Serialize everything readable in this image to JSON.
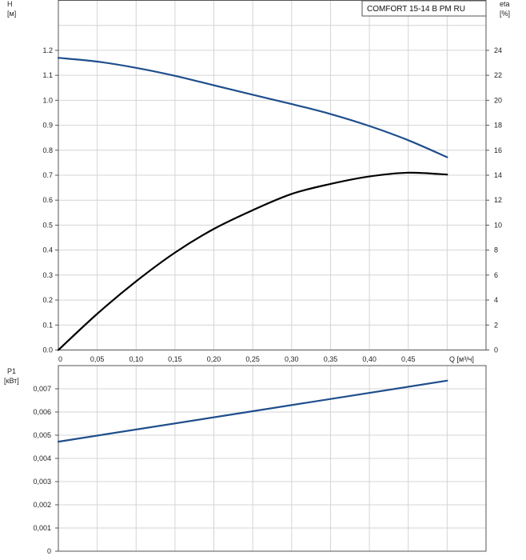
{
  "chart_data": [
    {
      "type": "line",
      "title": "",
      "legend_box": "COMFORT 15-14 B PM RU",
      "legend_position": "top-right",
      "grid": true,
      "x_label": "Q [м³/ч]",
      "x_range": [
        0,
        0.55
      ],
      "x_ticks": [
        "0",
        "0,05",
        "0,10",
        "0,15",
        "0,20",
        "0,25",
        "0,30",
        "0,35",
        "0,40",
        "0,45"
      ],
      "y_label": "H",
      "y_unit": "[м]",
      "y_range": [
        0,
        1.4
      ],
      "y_ticks": [
        "0.0",
        "0.1",
        "0.2",
        "0.3",
        "0.4",
        "0.5",
        "0.6",
        "0.7",
        "0.8",
        "0.9",
        "1.0",
        "1.1",
        "1.2"
      ],
      "y2_label": "eta",
      "y2_unit": "[%]",
      "y2_range": [
        0,
        28
      ],
      "y2_ticks": [
        "0",
        "2",
        "4",
        "6",
        "8",
        "10",
        "12",
        "14",
        "16",
        "18",
        "20",
        "22",
        "24"
      ],
      "series": [
        {
          "axis": "left",
          "color": "#1f4e8c",
          "x": [
            0,
            0.05,
            0.1,
            0.15,
            0.2,
            0.25,
            0.3,
            0.35,
            0.4,
            0.45,
            0.5
          ],
          "y": [
            1.17,
            1.155,
            1.13,
            1.098,
            1.06,
            1.022,
            0.985,
            0.945,
            0.897,
            0.84,
            0.772
          ]
        },
        {
          "axis": "right",
          "color": "#000000",
          "x": [
            0,
            0.05,
            0.1,
            0.15,
            0.2,
            0.25,
            0.3,
            0.35,
            0.4,
            0.45,
            0.5
          ],
          "y": [
            0,
            2.9,
            5.5,
            7.8,
            9.7,
            11.2,
            12.5,
            13.3,
            13.9,
            14.2,
            14.05
          ]
        }
      ]
    },
    {
      "type": "line",
      "title": "",
      "grid": true,
      "x_range": [
        0,
        0.55
      ],
      "y_label": "P1",
      "y_unit": "[кВт]",
      "y_range": [
        0,
        0.008
      ],
      "y_ticks": [
        "0",
        "0,001",
        "0,002",
        "0,003",
        "0,004",
        "0,005",
        "0,006",
        "0,007"
      ],
      "series": [
        {
          "axis": "left",
          "color": "#1f4e8c",
          "x": [
            0,
            0.5
          ],
          "y": [
            0.00472,
            0.00735
          ]
        }
      ]
    }
  ]
}
